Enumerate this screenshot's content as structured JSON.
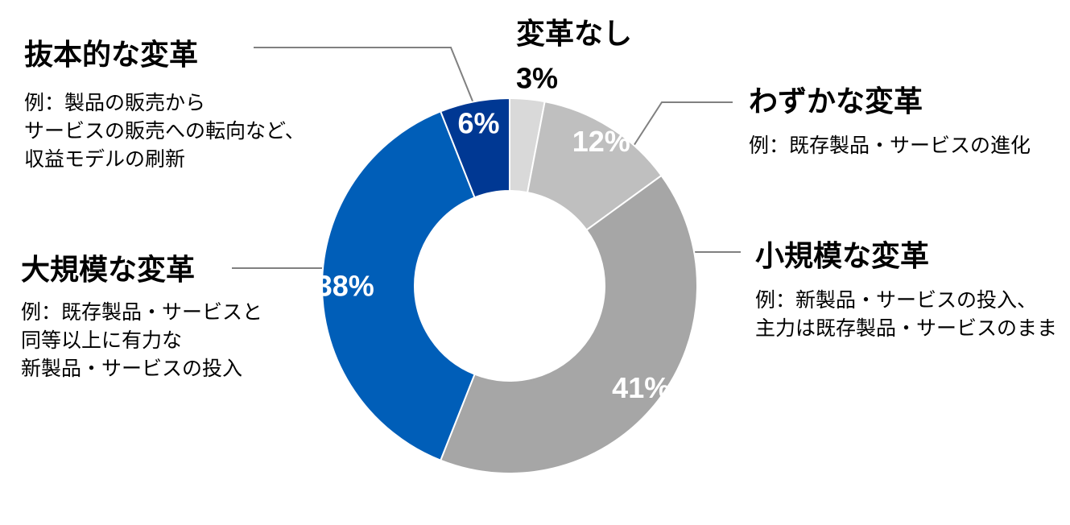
{
  "chart_data": {
    "type": "pie",
    "donut": true,
    "order": "clockwise from 12 o'clock",
    "slices": [
      {
        "label": "変革なし",
        "value": 3,
        "value_label": "3%",
        "color": "#d9d9d9"
      },
      {
        "label": "わずかな変革",
        "value": 12,
        "value_label": "12%",
        "color": "#bfbfbf"
      },
      {
        "label": "小規模な変革",
        "value": 41,
        "value_label": "41%",
        "color": "#a6a6a6"
      },
      {
        "label": "大規模な変革",
        "value": 38,
        "value_label": "38%",
        "color": "#005eb8"
      },
      {
        "label": "抜本的な変革",
        "value": 6,
        "value_label": "6%",
        "color": "#003893"
      }
    ]
  },
  "annotations": {
    "none": {
      "title": "変革なし"
    },
    "slight": {
      "title": "わずかな変革",
      "desc": [
        "例：既存製品・サービスの進化"
      ]
    },
    "small": {
      "title": "小規模な変革",
      "desc": [
        "例：新製品・サービスの投入、",
        "主力は既存製品・サービスのまま"
      ]
    },
    "large": {
      "title": "大規模な変革",
      "desc": [
        "例：既存製品・サービスと",
        "同等以上に有力な",
        "新製品・サービスの投入"
      ]
    },
    "radical": {
      "title": "抜本的な変革",
      "desc": [
        "例：製品の販売から",
        "サービスの販売への転向など、",
        "収益モデルの刷新"
      ]
    }
  }
}
